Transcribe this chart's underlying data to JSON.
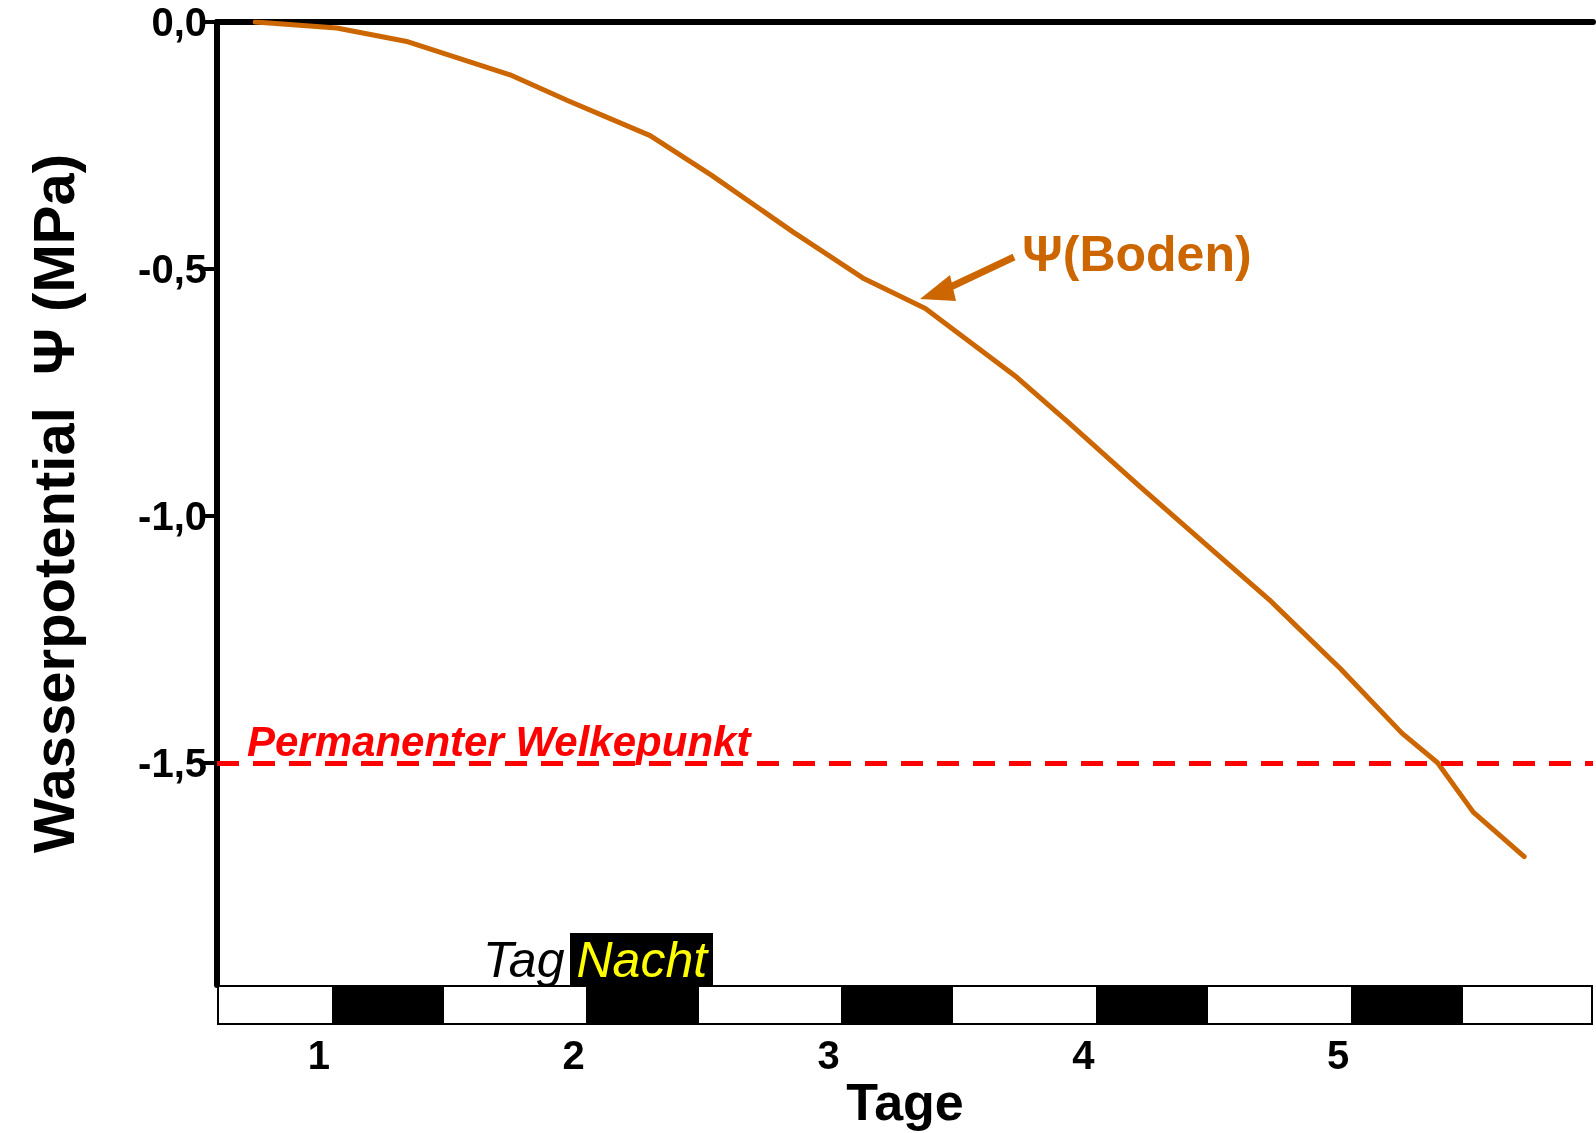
{
  "chart_data": {
    "type": "line",
    "ylabel": "Wasserpotential  Ψ (MPa)",
    "xlabel": "Tage",
    "x": [
      0.75,
      1.07,
      1.35,
      1.75,
      1.98,
      2.3,
      2.54,
      2.86,
      3.14,
      3.38,
      3.74,
      3.94,
      4.22,
      4.53,
      4.73,
      5.01,
      5.25,
      5.39,
      5.53,
      5.73
    ],
    "series": [
      {
        "color": "#cc6600",
        "values": [
          0,
          -0.012,
          -0.04,
          -0.107,
          -0.16,
          -0.23,
          -0.31,
          -0.425,
          -0.52,
          -0.58,
          -0.72,
          -0.81,
          -0.94,
          -1.08,
          -1.17,
          -1.31,
          -1.44,
          -1.5,
          -1.6,
          -1.69
        ]
      }
    ],
    "xlim": [
      0.6,
      6
    ],
    "xticks": [
      1,
      2,
      3,
      4,
      5
    ],
    "ylim": [
      -1.95,
      0
    ],
    "yticks": [
      {
        "value": 0,
        "label": "0,0"
      },
      {
        "value": -0.5,
        "label": "-0,5"
      },
      {
        "value": -1,
        "label": "-1,0"
      },
      {
        "value": -1.5,
        "label": "-1,5"
      }
    ],
    "grid": false,
    "marker": "none",
    "line_style": "solid",
    "ref_lines": [
      {
        "axis": "y",
        "value": -1.5,
        "label": "Permanenter Welkepunkt",
        "color": "#ff0000",
        "line_style": "dashed"
      }
    ],
    "annotations": [
      {
        "text": "Ψ(Boden)",
        "x": 3.36,
        "y": -0.56
      },
      "Tag",
      "Nacht"
    ]
  }
}
